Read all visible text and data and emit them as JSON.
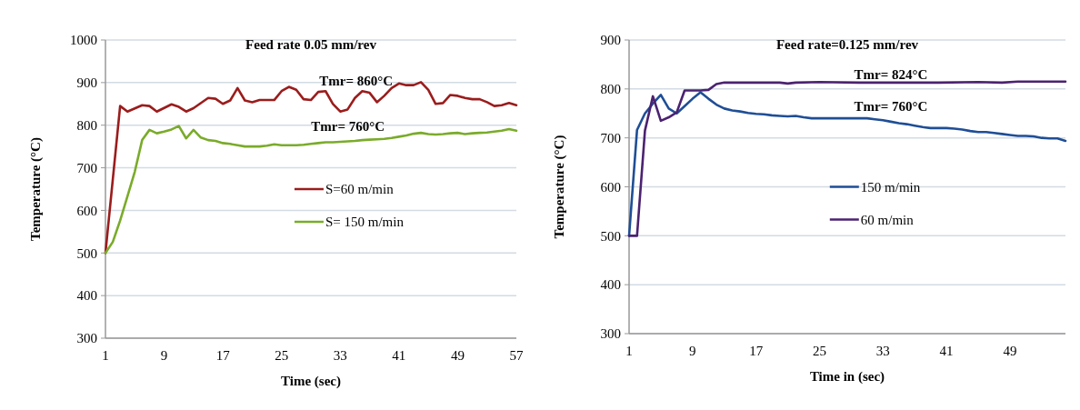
{
  "chart_data": [
    {
      "type": "line",
      "title": "Feed rate 0.05 mm/rev",
      "xlabel": "Time (sec)",
      "ylabel": "Temperature  (°C)",
      "xlim": [
        1,
        57
      ],
      "xticks": [
        1,
        9,
        17,
        25,
        33,
        41,
        49,
        57
      ],
      "ylim": [
        300,
        1000
      ],
      "yticks": [
        300,
        400,
        500,
        600,
        700,
        800,
        900,
        1000
      ],
      "grid": "y",
      "legend": "right",
      "marker": "none",
      "annotations": [
        "Tmr= 860°C",
        "Tmr= 760°C"
      ],
      "series": [
        {
          "name": "S=60 m/min",
          "color": "#9b1c1c",
          "x": [
            1,
            3,
            4,
            6,
            7,
            8,
            10,
            11,
            12,
            13,
            15,
            16,
            17,
            18,
            19,
            20,
            21,
            22,
            24,
            25,
            26,
            27,
            28,
            29,
            30,
            31,
            32,
            33,
            34,
            35,
            36,
            37,
            38,
            39,
            40,
            41,
            42,
            43,
            44,
            45,
            46,
            47,
            48,
            49,
            50,
            51,
            52,
            53,
            54,
            55,
            56,
            57
          ],
          "values": [
            500,
            845,
            832,
            847,
            845,
            832,
            849,
            843,
            832,
            840,
            864,
            862,
            850,
            858,
            887,
            858,
            854,
            859,
            859,
            880,
            890,
            883,
            861,
            859,
            878,
            880,
            850,
            832,
            837,
            864,
            880,
            876,
            854,
            869,
            887,
            898,
            894,
            894,
            901,
            883,
            850,
            852,
            871,
            869,
            864,
            861,
            861,
            854,
            845,
            847,
            852,
            847
          ]
        },
        {
          "name": "S= 150 m/min",
          "color": "#7aab2a",
          "x": [
            1,
            2,
            3,
            4,
            5,
            6,
            7,
            8,
            9,
            10,
            11,
            12,
            13,
            14,
            15,
            16,
            17,
            18,
            19,
            20,
            21,
            22,
            23,
            24,
            25,
            26,
            27,
            28,
            29,
            30,
            31,
            32,
            33,
            34,
            35,
            36,
            37,
            38,
            39,
            40,
            41,
            42,
            43,
            44,
            45,
            46,
            47,
            48,
            49,
            50,
            51,
            52,
            53,
            54,
            55,
            56,
            57
          ],
          "values": [
            500,
            526,
            576,
            633,
            691,
            765,
            789,
            781,
            785,
            790,
            798,
            769,
            789,
            771,
            765,
            763,
            758,
            756,
            753,
            750,
            750,
            750,
            752,
            755,
            753,
            753,
            753,
            754,
            756,
            758,
            760,
            760,
            761,
            762,
            763,
            765,
            766,
            767,
            768,
            770,
            773,
            776,
            780,
            782,
            779,
            778,
            779,
            781,
            782,
            779,
            781,
            782,
            783,
            785,
            787,
            791,
            787
          ]
        }
      ]
    },
    {
      "type": "line",
      "title": "Feed rate=0.125 mm/rev",
      "xlabel": "Time in (sec)",
      "ylabel": "Temperature  (°C)",
      "xlim": [
        1,
        56
      ],
      "xticks": [
        1,
        9,
        17,
        25,
        33,
        41,
        49
      ],
      "ylim": [
        300,
        900
      ],
      "yticks": [
        300,
        400,
        500,
        600,
        700,
        800,
        900
      ],
      "grid": "y",
      "legend": "right",
      "marker": "none",
      "annotations": [
        "Tmr= 824°C",
        "Tmr= 760°C"
      ],
      "series": [
        {
          "name": "150 m/min",
          "color": "#1f4e96",
          "x": [
            1,
            2,
            3,
            4,
            5,
            6,
            7,
            8,
            9,
            10,
            11,
            12,
            13,
            14,
            15,
            16,
            17,
            18,
            19,
            20,
            21,
            22,
            23,
            24,
            25,
            28,
            31,
            32,
            33,
            34,
            35,
            36,
            37,
            38,
            39,
            40,
            41,
            42,
            43,
            44,
            45,
            46,
            47,
            48,
            49,
            50,
            51,
            52,
            53,
            54,
            55,
            56
          ],
          "values": [
            500,
            716,
            750,
            770,
            788,
            760,
            750,
            765,
            780,
            793,
            780,
            768,
            760,
            756,
            754,
            751,
            749,
            748,
            746,
            745,
            744,
            745,
            742,
            740,
            740,
            740,
            740,
            738,
            736,
            733,
            730,
            728,
            725,
            722,
            720,
            720,
            720,
            719,
            717,
            714,
            712,
            712,
            710,
            708,
            706,
            704,
            704,
            703,
            700,
            699,
            699,
            694
          ]
        },
        {
          "name": "60 m/min",
          "color": "#4b2270",
          "x": [
            1,
            2,
            3,
            4,
            5,
            6,
            7,
            8,
            9,
            10,
            11,
            12,
            13,
            17,
            20,
            21,
            22,
            25,
            30,
            35,
            40,
            45,
            48,
            50,
            56
          ],
          "values": [
            500,
            500,
            715,
            785,
            735,
            742,
            752,
            797,
            797,
            797,
            798,
            810,
            813,
            813,
            813,
            811,
            813,
            814,
            813,
            813,
            813,
            814,
            813,
            815,
            815
          ]
        }
      ]
    }
  ]
}
